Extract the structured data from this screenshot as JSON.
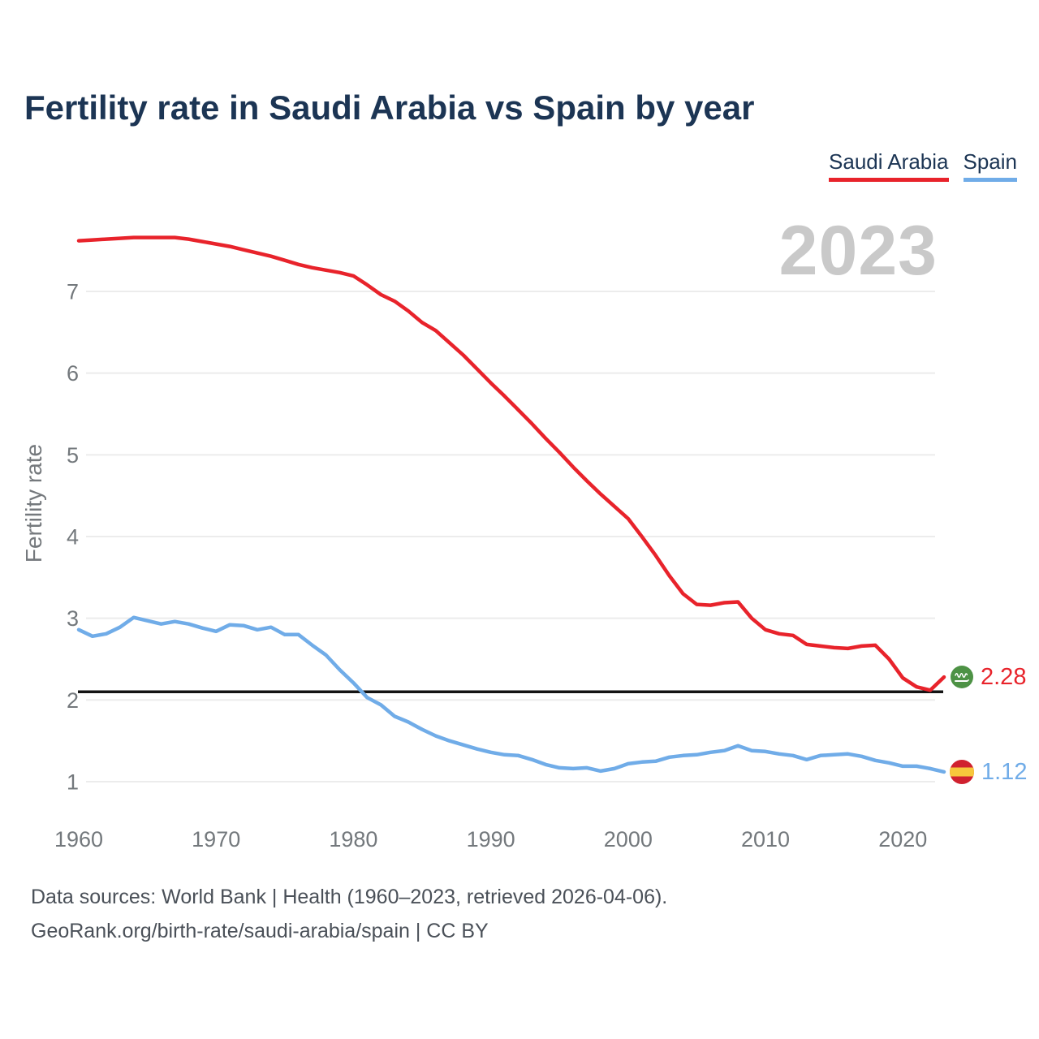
{
  "watermark": "2023",
  "legend": {
    "items": [
      {
        "label": "Saudi Arabia",
        "color": "#e8232b"
      },
      {
        "label": "Spain",
        "color": "#70ace8"
      }
    ]
  },
  "end_labels": {
    "saudi": {
      "value": "2.28",
      "flag": "saudi-arabia-flag"
    },
    "spain": {
      "value": "1.12",
      "flag": "spain-flag"
    }
  },
  "footer": {
    "line1": "Data sources: World Bank | Health (1960–2023, retrieved 2026-04-06).",
    "line2": "GeoRank.org/birth-rate/saudi-arabia/spain | CC BY"
  },
  "colors": {
    "title": "#1c3554",
    "saudi_line": "#e8232b",
    "spain_line": "#70ace8",
    "reference_line": "#141414",
    "gridline": "#ececec",
    "tick_text": "#73787c",
    "watermark": "#c9c9c9",
    "saudi_flag_green": "#4d9245",
    "spain_flag_red": "#d0212f",
    "spain_flag_yellow": "#f7c73c"
  },
  "chart_data": {
    "type": "line",
    "title": "Fertility rate in Saudi Arabia vs Spain by year",
    "ylabel": "Fertility rate",
    "xlabel": "",
    "grid": "horizontal",
    "legend_position": "top-right",
    "ylim": [
      0.8,
      7.9
    ],
    "xlim": [
      1960,
      2023
    ],
    "y_ticks": [
      1,
      2,
      3,
      4,
      5,
      6,
      7
    ],
    "x_ticks": [
      1960,
      1970,
      1980,
      1990,
      2000,
      2010,
      2020
    ],
    "reference_line": 2.1,
    "x": [
      1960,
      1961,
      1962,
      1963,
      1964,
      1965,
      1966,
      1967,
      1968,
      1969,
      1970,
      1971,
      1972,
      1973,
      1974,
      1975,
      1976,
      1977,
      1978,
      1979,
      1980,
      1981,
      1982,
      1983,
      1984,
      1985,
      1986,
      1987,
      1988,
      1989,
      1990,
      1991,
      1992,
      1993,
      1994,
      1995,
      1996,
      1997,
      1998,
      1999,
      2000,
      2001,
      2002,
      2003,
      2004,
      2005,
      2006,
      2007,
      2008,
      2009,
      2010,
      2011,
      2012,
      2013,
      2014,
      2015,
      2016,
      2017,
      2018,
      2019,
      2020,
      2021,
      2022,
      2023
    ],
    "series": [
      {
        "name": "Saudi Arabia",
        "color": "#e8232b",
        "last_value": 2.28,
        "values": [
          7.62,
          7.63,
          7.64,
          7.65,
          7.66,
          7.66,
          7.66,
          7.66,
          7.64,
          7.61,
          7.58,
          7.55,
          7.51,
          7.47,
          7.43,
          7.38,
          7.33,
          7.29,
          7.26,
          7.23,
          7.19,
          7.08,
          6.96,
          6.88,
          6.76,
          6.62,
          6.52,
          6.37,
          6.22,
          6.05,
          5.88,
          5.72,
          5.55,
          5.38,
          5.2,
          5.03,
          4.85,
          4.68,
          4.52,
          4.37,
          4.22,
          4.0,
          3.77,
          3.52,
          3.3,
          3.17,
          3.16,
          3.19,
          3.2,
          3.0,
          2.86,
          2.81,
          2.79,
          2.68,
          2.66,
          2.64,
          2.63,
          2.66,
          2.67,
          2.5,
          2.27,
          2.16,
          2.12,
          2.28
        ]
      },
      {
        "name": "Spain",
        "color": "#70ace8",
        "last_value": 1.12,
        "values": [
          2.86,
          2.78,
          2.81,
          2.89,
          3.01,
          2.97,
          2.93,
          2.96,
          2.93,
          2.88,
          2.84,
          2.92,
          2.91,
          2.86,
          2.89,
          2.8,
          2.8,
          2.67,
          2.55,
          2.37,
          2.21,
          2.03,
          1.94,
          1.8,
          1.73,
          1.64,
          1.56,
          1.5,
          1.45,
          1.4,
          1.36,
          1.33,
          1.32,
          1.27,
          1.21,
          1.17,
          1.16,
          1.17,
          1.13,
          1.16,
          1.22,
          1.24,
          1.25,
          1.3,
          1.32,
          1.33,
          1.36,
          1.38,
          1.44,
          1.38,
          1.37,
          1.34,
          1.32,
          1.27,
          1.32,
          1.33,
          1.34,
          1.31,
          1.26,
          1.23,
          1.19,
          1.19,
          1.16,
          1.12
        ]
      }
    ]
  }
}
